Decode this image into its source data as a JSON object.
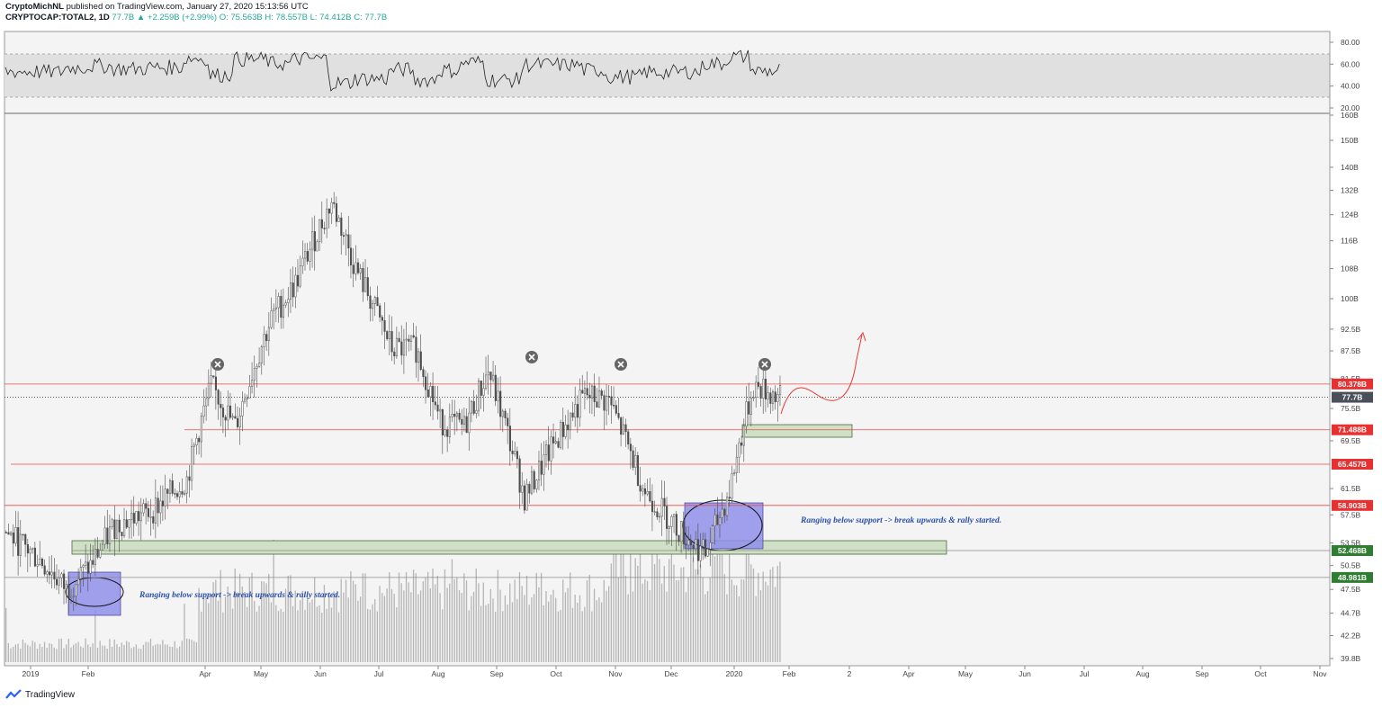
{
  "header": {
    "publisher": "CryptoMichNL",
    "published_text": "published on TradingView.com, January 27, 2020 15:13:56 UTC",
    "symbol": "CRYPTOCAP:TOTAL2, 1D",
    "last": "77.7B",
    "change": "+2.259B (+2.99%)",
    "open": "O: 75.563B",
    "high": "H: 78.557B",
    "low": "L: 74.412B",
    "close": "C: 77.7B"
  },
  "footer": {
    "brand": "TradingView"
  },
  "colors": {
    "accent_green": "#26a69a",
    "candle": "#4d4d4d",
    "volume": "#b5b5b5",
    "resistance_line": "#e84b4b",
    "support_zone": "#cfe0c4",
    "range_box": "#8f8fea",
    "price_label_red": "#e83030",
    "price_label_green": "#2e7d32",
    "current_label": "#4a4f5a",
    "annotation_text": "#2c4fa8",
    "arrow": "#e53935"
  },
  "chart_data": {
    "type": "candlestick",
    "title": "",
    "x_tick_labels": [
      "2019",
      "Feb",
      "Apr",
      "May",
      "Jun",
      "Jul",
      "Aug",
      "Sep",
      "Oct",
      "Nov",
      "Dec",
      "2020",
      "Feb",
      "2",
      "Apr",
      "May",
      "Jun",
      "Jul",
      "Aug",
      "Sep",
      "Oct",
      "Nov"
    ],
    "y_tick_labels": [
      "160B",
      "150B",
      "140B",
      "132B",
      "124B",
      "116B",
      "108B",
      "100B",
      "92.5B",
      "87.5B",
      "81.5B",
      "75.5B",
      "69.5B",
      "61.5B",
      "57.5B",
      "53.5B",
      "50.5B",
      "47.5B",
      "44.7B",
      "42.2B",
      "39.8B"
    ],
    "y_scale": "log",
    "ylim": [
      "39.8B",
      "160B"
    ],
    "current_price": "77.7B",
    "horizontal_levels": [
      {
        "label": "80.378B",
        "style": "resistance"
      },
      {
        "label": "71.488B",
        "style": "resistance"
      },
      {
        "label": "65.457B",
        "style": "resistance"
      },
      {
        "label": "58.903B",
        "style": "resistance"
      },
      {
        "label": "52.468B",
        "style": "support"
      },
      {
        "label": "48.981B",
        "style": "support"
      }
    ],
    "rejection_markers": [
      "Apr 2019",
      "Sep 2019",
      "Nov 2019",
      "Jan 2020"
    ],
    "annotations": [
      "Ranging below support -> break upwards & rally started.",
      "Ranging below support -> break upwards & rally started."
    ],
    "rsi": {
      "y_tick_labels": [
        "80.00",
        "60.00",
        "40.00",
        "20.00"
      ],
      "band": [
        30,
        70
      ]
    },
    "price_path_approx_B": [
      [
        0,
        55
      ],
      [
        15,
        51
      ],
      [
        25,
        47.5
      ],
      [
        35,
        50.5
      ],
      [
        45,
        56
      ],
      [
        60,
        58
      ],
      [
        75,
        63
      ],
      [
        85,
        80
      ],
      [
        95,
        72
      ],
      [
        110,
        95
      ],
      [
        120,
        104
      ],
      [
        135,
        128
      ],
      [
        145,
        108
      ],
      [
        160,
        88
      ],
      [
        170,
        88
      ],
      [
        180,
        73
      ],
      [
        190,
        72
      ],
      [
        200,
        83
      ],
      [
        215,
        60
      ],
      [
        230,
        71
      ],
      [
        240,
        78
      ],
      [
        250,
        77
      ],
      [
        265,
        61
      ],
      [
        280,
        55
      ],
      [
        290,
        52
      ],
      [
        300,
        61
      ],
      [
        310,
        80
      ],
      [
        321,
        77.7
      ]
    ]
  }
}
